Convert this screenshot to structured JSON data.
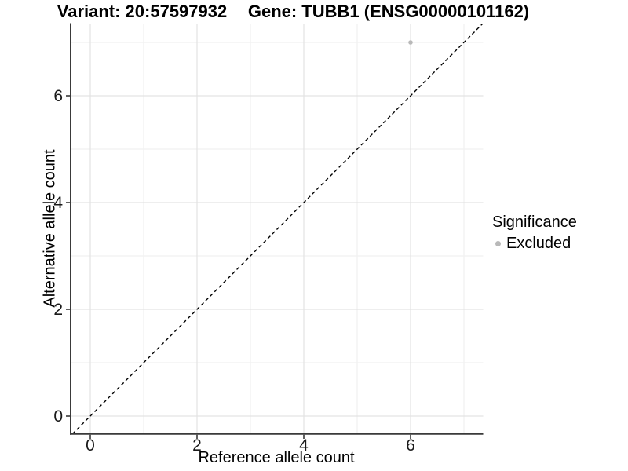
{
  "chart_data": {
    "type": "scatter",
    "titles": {
      "left": "Variant: 20:57597932",
      "right": "Gene: TUBB1 (ENSG00000101162)"
    },
    "xlabel": "Reference allele count",
    "ylabel": "Alternative allele count",
    "xlim": [
      -0.35,
      7.35
    ],
    "ylim": [
      -0.35,
      7.35
    ],
    "x_ticks": [
      "0",
      "2",
      "4",
      "6"
    ],
    "y_ticks": [
      "0",
      "2",
      "4",
      "6"
    ],
    "minor_grid_at": [
      1,
      3,
      5,
      7
    ],
    "grid": "major and minor gridlines, light gray on white panel",
    "points": [
      {
        "x": 6,
        "y": 7,
        "series": "Excluded"
      }
    ],
    "identity_line": {
      "slope": 1,
      "intercept": 0,
      "style": "dashed"
    },
    "legend": {
      "title": "Significance",
      "position": "right",
      "items": [
        {
          "label": "Excluded",
          "color": "#b9b9b9"
        }
      ]
    }
  },
  "colors": {
    "point": "#b9b9b9",
    "grid_major": "#e3e3e3",
    "grid_minor": "#f1f1f1",
    "axis": "#3a3a3a",
    "dashed_line": "#000000",
    "background": "#ffffff",
    "text": "#000000"
  }
}
